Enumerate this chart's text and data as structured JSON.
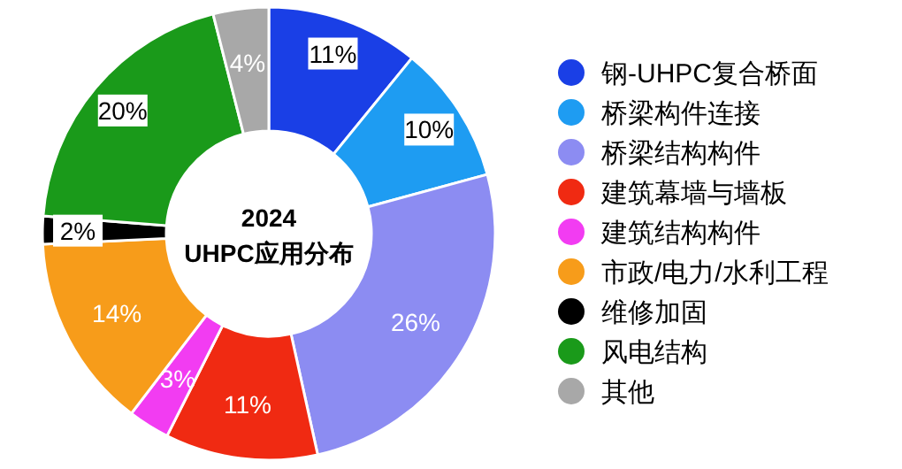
{
  "chart_data": {
    "type": "donut",
    "title": "2024",
    "subtitle": "UHPC应用分布",
    "categories": [
      "钢-UHPC复合桥面",
      "桥梁构件连接",
      "桥梁结构构件",
      "建筑幕墙与墙板",
      "建筑结构构件",
      "市政/电力/水利工程",
      "维修加固",
      "风电结构",
      "其他"
    ],
    "values": [
      11,
      10,
      26,
      11,
      3,
      14,
      2,
      20,
      4
    ],
    "value_labels": [
      "11%",
      "10%",
      "26%",
      "11%",
      "3%",
      "14%",
      "2%",
      "20%",
      "4%"
    ],
    "colors": [
      "#1a3fe6",
      "#1e9cf2",
      "#8c8cf2",
      "#f02a12",
      "#f23cf2",
      "#f79c1a",
      "#000000",
      "#1a9a1a",
      "#a8a8a8"
    ],
    "legend": "right"
  }
}
